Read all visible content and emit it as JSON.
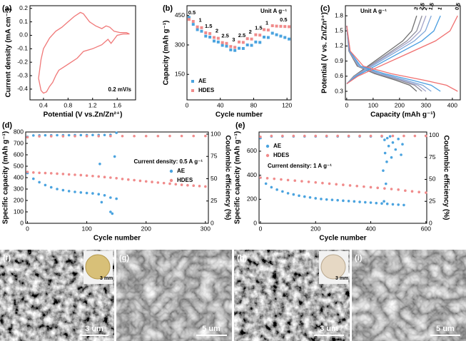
{
  "chart_data": [
    {
      "label": "(a)",
      "type": "line",
      "xlabel": "Potential (V vs.Zn/Zn²⁺)",
      "ylabel": "Current density (mA cm⁻²)",
      "annotation": "0.2 mV/s",
      "xlim": [
        0.18,
        1.9
      ],
      "xticks": [
        0.4,
        0.8,
        1.2,
        1.6
      ],
      "ylim": [
        -0.48,
        0.22
      ],
      "yticks": [
        -0.4,
        -0.3,
        -0.2,
        -0.1,
        {
          "value": 0,
          "label": "0.0"
        },
        0.1,
        0.2
      ],
      "series": [
        {
          "color": "#f07878",
          "x": [
            0.32,
            0.36,
            0.4,
            0.5,
            0.6,
            0.7,
            0.8,
            0.9,
            1.0,
            1.05,
            1.15,
            1.25,
            1.35,
            1.42,
            1.48,
            1.55,
            1.65,
            1.75,
            1.8,
            1.7,
            1.6,
            1.55,
            1.5,
            1.45,
            1.35,
            1.2,
            1.05,
            0.95,
            0.85,
            0.75,
            0.65,
            0.6,
            0.55,
            0.5,
            0.45,
            0.4,
            0.36,
            0.32
          ],
          "y": [
            -0.32,
            -0.18,
            -0.1,
            -0.02,
            0.03,
            0.06,
            0.1,
            0.14,
            0.17,
            0.16,
            0.1,
            0.07,
            0.05,
            0.07,
            0.06,
            0.03,
            0.02,
            0.02,
            0.01,
            0.01,
            0.0,
            -0.03,
            -0.06,
            -0.03,
            -0.07,
            -0.1,
            -0.12,
            -0.17,
            -0.2,
            -0.23,
            -0.26,
            -0.3,
            -0.35,
            -0.38,
            -0.42,
            -0.43,
            -0.41,
            -0.32
          ]
        }
      ]
    },
    {
      "label": "(b)",
      "type": "scatter",
      "marker": "square",
      "xlabel": "Cycle number",
      "ylabel": "Capacity (mAh g⁻¹)",
      "annotation": "Unit A g⁻¹",
      "rate_labels": [
        "0.5",
        "1",
        "1.5",
        "2",
        "2.5",
        "3",
        "2.5",
        "2",
        "1.5",
        "1",
        "0.5"
      ],
      "legend": "lower left",
      "xlim": [
        0,
        125
      ],
      "xticks": [
        0,
        40,
        80,
        120
      ],
      "ylim": [
        20,
        500
      ],
      "yticks": [
        150,
        300,
        450
      ],
      "x": [
        2.5,
        7.5,
        12.5,
        17.5,
        22.5,
        27.5,
        32.5,
        37.5,
        42.5,
        47.5,
        52.5,
        57.5,
        62.5,
        67.5,
        72.5,
        77.5,
        82.5,
        87.5,
        92.5,
        97.5,
        102.5,
        107.5,
        112.5,
        117.5,
        122.5
      ],
      "series": [
        {
          "name": "AE",
          "color": "#4aa3df",
          "values": [
            440,
            405,
            378,
            370,
            345,
            340,
            320,
            315,
            298,
            294,
            275,
            272,
            283,
            282,
            300,
            298,
            315,
            313,
            340,
            338,
            360,
            352,
            345,
            338,
            330
          ]
        },
        {
          "name": "HDES",
          "color": "#f08b8b",
          "values": [
            430,
            420,
            392,
            388,
            362,
            358,
            338,
            334,
            312,
            308,
            292,
            288,
            315,
            313,
            332,
            330,
            352,
            350,
            378,
            376,
            398,
            396,
            395,
            394,
            393
          ]
        }
      ]
    },
    {
      "label": "(c)",
      "type": "line",
      "xlabel": "Capacity (mAh g⁻¹)",
      "ylabel": "Potential (V vs. Zn/Zn²⁺)",
      "annotation": "Unit A g⁻¹",
      "xlim": [
        -5,
        430
      ],
      "xticks": [
        0,
        100,
        200,
        300,
        400
      ],
      "ylim": [
        0.13,
        2.0
      ],
      "yticks": [
        0.3,
        0.6,
        0.9,
        1.2,
        1.5,
        1.8
      ],
      "series": [
        {
          "name": "3",
          "color": "#6e6e6e",
          "x": [
            0,
            8,
            40,
            106,
            186,
            239,
            265,
            null,
            265,
            246,
            212,
            146,
            80,
            27,
            0
          ],
          "y": [
            1.6,
            1.1,
            0.8,
            0.65,
            0.52,
            0.42,
            0.3,
            null,
            1.8,
            1.5,
            1.3,
            1.05,
            0.8,
            0.6,
            0.45
          ]
        },
        {
          "name": "2.5",
          "color": "#8e8e9c",
          "x": [
            0,
            9,
            43,
            114,
            200,
            257,
            285,
            null,
            285,
            265,
            228,
            157,
            86,
            29,
            0
          ],
          "y": [
            1.6,
            1.1,
            0.8,
            0.65,
            0.52,
            0.42,
            0.3,
            null,
            1.8,
            1.5,
            1.3,
            1.05,
            0.8,
            0.6,
            0.45
          ]
        },
        {
          "name": "2",
          "color": "#a3a3c8",
          "x": [
            0,
            9,
            45,
            120,
            210,
            270,
            300,
            null,
            300,
            279,
            240,
            165,
            90,
            30,
            0
          ],
          "y": [
            1.6,
            1.1,
            0.8,
            0.65,
            0.52,
            0.42,
            0.3,
            null,
            1.8,
            1.5,
            1.3,
            1.05,
            0.8,
            0.6,
            0.45
          ]
        },
        {
          "name": "1.5",
          "color": "#7fa6d8",
          "x": [
            0,
            10,
            48,
            128,
            224,
            288,
            320,
            null,
            320,
            298,
            256,
            176,
            96,
            32,
            0
          ],
          "y": [
            1.6,
            1.1,
            0.8,
            0.65,
            0.52,
            0.42,
            0.3,
            null,
            1.8,
            1.5,
            1.3,
            1.05,
            0.8,
            0.6,
            0.45
          ]
        },
        {
          "name": "1",
          "color": "#4a9ee0",
          "x": [
            0,
            11,
            53,
            142,
            249,
            320,
            355,
            null,
            355,
            330,
            284,
            195,
            107,
            36,
            0
          ],
          "y": [
            1.6,
            1.1,
            0.8,
            0.65,
            0.52,
            0.42,
            0.3,
            null,
            1.8,
            1.5,
            1.3,
            1.05,
            0.8,
            0.6,
            0.45
          ]
        },
        {
          "name": "0.5",
          "color": "#f07070",
          "x": [
            0,
            13,
            63,
            168,
            294,
            378,
            420,
            null,
            420,
            391,
            336,
            231,
            126,
            42,
            0
          ],
          "y": [
            1.6,
            1.1,
            0.8,
            0.65,
            0.52,
            0.42,
            0.3,
            null,
            1.8,
            1.5,
            1.3,
            1.05,
            0.8,
            0.6,
            0.45
          ]
        }
      ]
    },
    {
      "label": "(d)",
      "type": "scatter",
      "marker": "circle",
      "xlabel": "Cycle number",
      "ylabel": "Specific capacity (mAh g⁻¹)",
      "y2label": "Coulombic efficiency (%)",
      "annotation": "Current density: 0.5 A g⁻¹",
      "legend": "center right",
      "xlim": [
        -3,
        305
      ],
      "xticks": [
        0,
        100,
        200,
        300
      ],
      "ylim": [
        0,
        800
      ],
      "yticks": [
        0,
        100,
        200,
        300,
        400,
        500,
        600,
        700,
        800
      ],
      "y2lim": [
        0,
        102.4
      ],
      "y2ticks": [
        0,
        25,
        50,
        75,
        100
      ],
      "series": [
        {
          "name": "AE",
          "color": "#4aa3df",
          "x": [
            0,
            10,
            20,
            30,
            40,
            50,
            60,
            70,
            80,
            90,
            100,
            110,
            120,
            130,
            140,
            150,
            122,
            125,
            140,
            143,
            147
          ],
          "values": [
            440,
            390,
            360,
            335,
            315,
            300,
            290,
            282,
            275,
            270,
            265,
            262,
            255,
            245,
            225,
            215,
            520,
            185,
            100,
            85,
            585
          ]
        },
        {
          "name": "HDES",
          "color": "#f08b8b",
          "x": [
            0,
            10,
            20,
            30,
            40,
            50,
            60,
            70,
            80,
            90,
            100,
            110,
            120,
            130,
            140,
            150,
            160,
            170,
            180,
            190,
            200,
            210,
            220,
            230,
            240,
            250,
            260,
            270,
            280,
            290,
            300
          ],
          "values": [
            450,
            445,
            442,
            440,
            438,
            435,
            432,
            428,
            425,
            422,
            418,
            414,
            410,
            405,
            400,
            395,
            388,
            383,
            378,
            372,
            367,
            362,
            357,
            352,
            347,
            342,
            337,
            333,
            330,
            326,
            322
          ]
        },
        {
          "color": "#4aa3df",
          "axis": "y2",
          "x": [
            0,
            10,
            20,
            30,
            40,
            50,
            60,
            70,
            80,
            90,
            100,
            110,
            120,
            130,
            140,
            150
          ],
          "values": [
            97,
            98.5,
            98.6,
            98.7,
            98.7,
            98.8,
            98.8,
            98.8,
            98.9,
            98.9,
            98.9,
            99,
            99,
            99,
            99.2,
            101.5
          ]
        },
        {
          "color": "#f08b8b",
          "axis": "y2",
          "x": [
            0,
            20,
            40,
            60,
            80,
            100,
            120,
            140,
            160,
            180,
            200,
            220,
            240,
            260,
            280,
            300
          ],
          "values": [
            96.5,
            97.5,
            97.6,
            97.6,
            97.7,
            97.7,
            97.7,
            97.8,
            97.8,
            97.8,
            97.8,
            97.8,
            97.9,
            97.9,
            97.9,
            97.9
          ]
        }
      ]
    },
    {
      "label": "(e)",
      "type": "scatter",
      "marker": "circle",
      "xlabel": "Cycle number",
      "ylabel": "Specific capacity (mAh g⁻¹)",
      "y2label": "Coulombic efficiency (%)",
      "annotation": "Current density: 1 A g⁻¹",
      "legend": "upper left",
      "xlim": [
        -5,
        603
      ],
      "xticks": [
        0,
        200,
        400,
        600
      ],
      "ylim": [
        0,
        760
      ],
      "yticks": [
        0,
        200,
        400,
        600
      ],
      "y2lim": [
        0,
        104
      ],
      "y2ticks": [
        0,
        25,
        50,
        75,
        100
      ],
      "series": [
        {
          "name": "AE",
          "color": "#4aa3df",
          "x": [
            0,
            20,
            40,
            60,
            80,
            100,
            120,
            140,
            160,
            180,
            200,
            220,
            240,
            260,
            280,
            300,
            320,
            340,
            360,
            380,
            400,
            420,
            440,
            460,
            480,
            500,
            520
          ],
          "values": [
            380,
            330,
            300,
            280,
            265,
            250,
            240,
            230,
            222,
            215,
            208,
            202,
            198,
            195,
            192,
            188,
            185,
            182,
            178,
            175,
            172,
            168,
            165,
            162,
            158,
            155,
            152
          ]
        },
        {
          "name": "HDES",
          "color": "#f08b8b",
          "x": [
            0,
            25,
            50,
            75,
            100,
            125,
            150,
            175,
            200,
            225,
            250,
            275,
            300,
            325,
            350,
            375,
            400,
            425,
            450,
            475,
            500,
            525,
            550,
            575,
            600
          ],
          "values": [
            380,
            375,
            370,
            365,
            360,
            355,
            350,
            345,
            340,
            335,
            330,
            325,
            320,
            315,
            310,
            305,
            300,
            295,
            290,
            285,
            280,
            272,
            266,
            260,
            255
          ]
        },
        {
          "color": "#4aa3df",
          "axis": "y2",
          "x": [
            0,
            40,
            80,
            120,
            160,
            200,
            240,
            280,
            320,
            360,
            400,
            440,
            445,
            448,
            450,
            452,
            455,
            458,
            460,
            465,
            470,
            475,
            480,
            490,
            500,
            510,
            515
          ],
          "values": [
            97,
            99,
            99,
            99,
            99,
            99,
            99,
            99,
            99,
            99,
            99,
            99,
            60,
            25,
            95,
            80,
            45,
            70,
            97,
            88,
            99,
            75,
            92,
            84,
            96,
            78,
            90
          ]
        },
        {
          "color": "#f08b8b",
          "axis": "y2",
          "x": [
            0,
            40,
            80,
            120,
            160,
            200,
            240,
            280,
            320,
            360,
            400,
            440,
            480,
            520,
            560,
            600
          ],
          "values": [
            98.5,
            99.5,
            99.5,
            99.5,
            99.5,
            99.5,
            99.5,
            99.5,
            99.5,
            99.5,
            99.5,
            99.5,
            99.5,
            99.5,
            99.5,
            99.5
          ]
        }
      ]
    }
  ],
  "images": [
    {
      "label": "(f)",
      "scale_bar": "3 um",
      "inset_scale": "3 mm"
    },
    {
      "label": "(g)",
      "scale_bar": "5 um"
    },
    {
      "label": "(h)",
      "scale_bar": "3 um",
      "inset_scale": "3 mm"
    },
    {
      "label": "(i)",
      "scale_bar": "5 um"
    }
  ]
}
